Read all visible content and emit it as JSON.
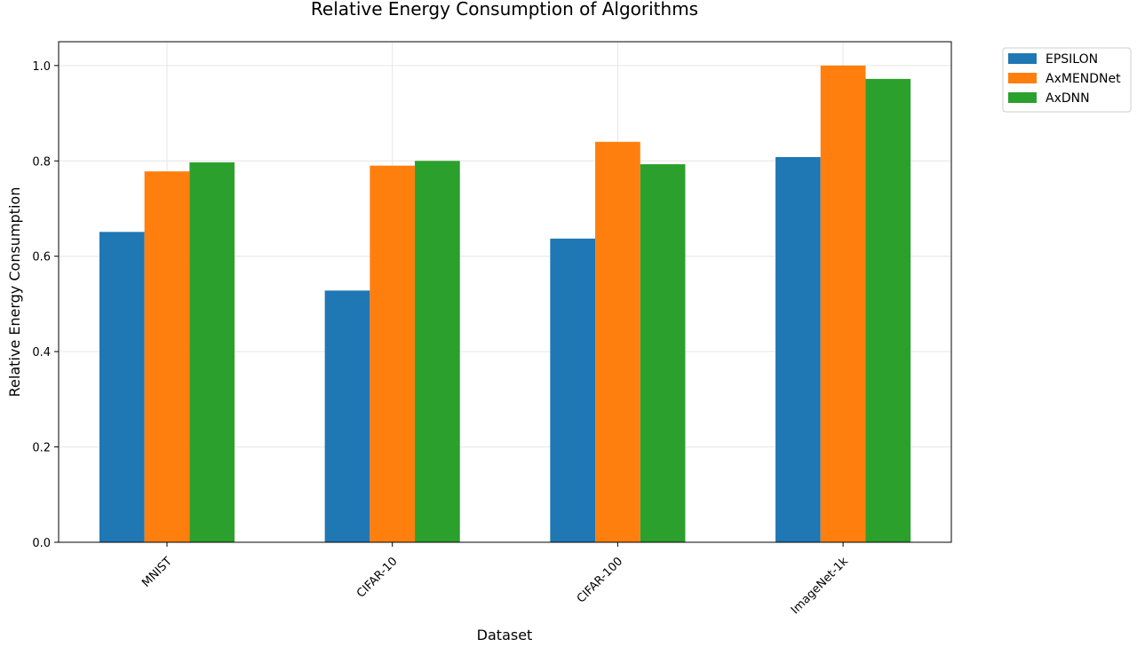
{
  "chart_data": {
    "type": "bar",
    "title": "Relative Energy Consumption of Algorithms",
    "xlabel": "Dataset",
    "ylabel": "Relative Energy Consumption",
    "categories": [
      "MNIST",
      "CIFAR-10",
      "CIFAR-100",
      "ImageNet-1k"
    ],
    "series": [
      {
        "name": "EPSILON",
        "color": "#1f77b4",
        "values": [
          0.651,
          0.528,
          0.637,
          0.808
        ]
      },
      {
        "name": "AxMENDNet",
        "color": "#ff7f0e",
        "values": [
          0.778,
          0.79,
          0.84,
          1.0
        ]
      },
      {
        "name": "AxDNN",
        "color": "#2ca02c",
        "values": [
          0.797,
          0.8,
          0.793,
          0.972
        ]
      }
    ],
    "ylim": [
      0,
      1.05
    ],
    "yticks": [
      0.0,
      0.2,
      0.4,
      0.6,
      0.8,
      1.0
    ],
    "grid": true,
    "legend_position": "outside-top-right"
  }
}
